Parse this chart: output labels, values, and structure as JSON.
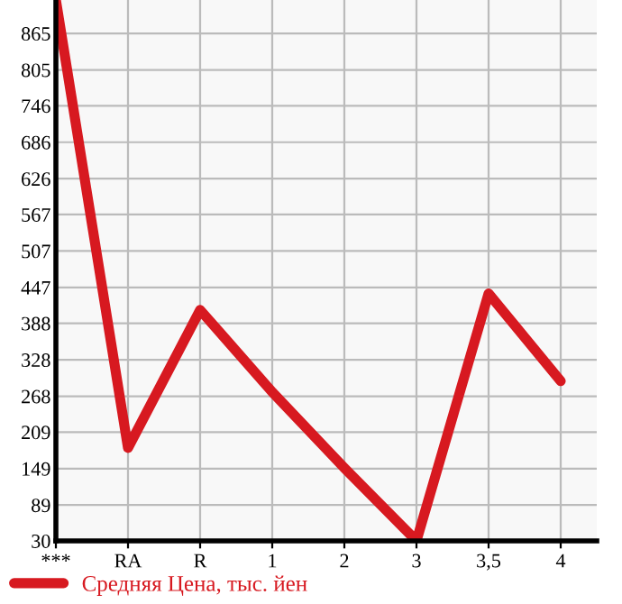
{
  "chart_data": {
    "type": "line",
    "categories": [
      "***",
      "RA",
      "R",
      "1",
      "2",
      "3",
      "3,5",
      "4"
    ],
    "series": [
      {
        "name": "Средняя Цена, тыс. йен",
        "color": "#d71920",
        "values": [
          920,
          183,
          410,
          275,
          150,
          30,
          437,
          293
        ]
      }
    ],
    "ylim": [
      30,
      920
    ],
    "yticks": [
      30,
      89,
      149,
      209,
      268,
      328,
      388,
      447,
      507,
      567,
      626,
      686,
      746,
      805,
      865
    ],
    "grid": true,
    "legend": "bottom",
    "marker": "none",
    "line_style": "solid"
  }
}
